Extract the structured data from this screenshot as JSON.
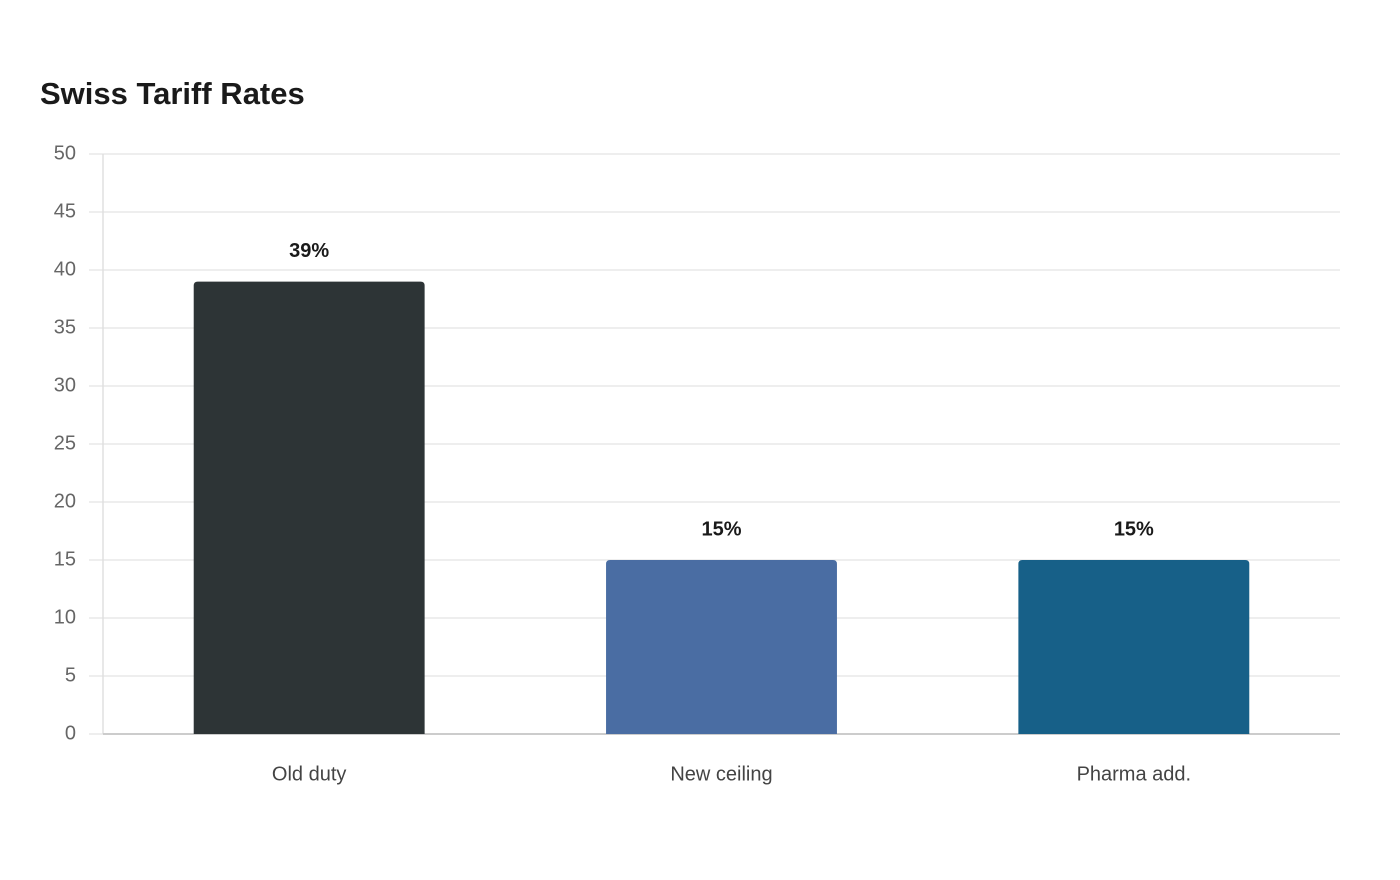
{
  "chart_data": {
    "type": "bar",
    "title": "Swiss Tariff Rates",
    "categories": [
      "Old duty",
      "New ceiling",
      "Pharma add."
    ],
    "values": [
      39,
      15,
      15
    ],
    "value_labels": [
      "39%",
      "15%",
      "15%"
    ],
    "colors": [
      "#2d3436",
      "#4a6da3",
      "#176088"
    ],
    "ylim": [
      0,
      50
    ],
    "yticks": [
      0,
      5,
      10,
      15,
      20,
      25,
      30,
      35,
      40,
      45,
      50
    ],
    "grid": true
  }
}
